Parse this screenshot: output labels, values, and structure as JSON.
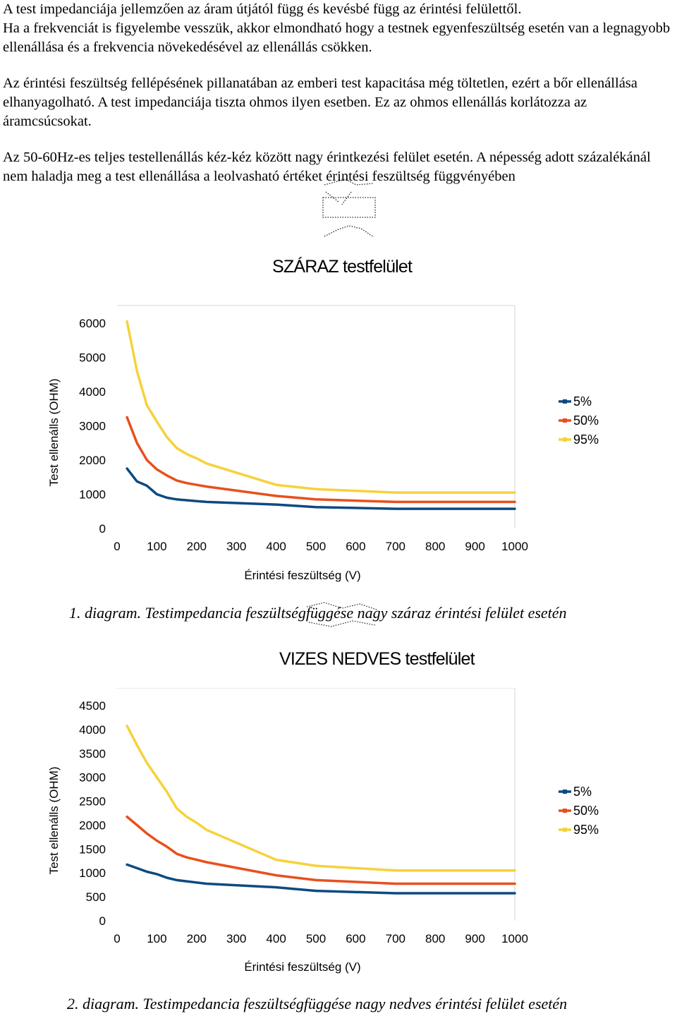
{
  "text": {
    "p1_line1": "A test impedanciája jellemzően az áram útjától függ és kevésbé függ az érintési felülettől.",
    "p1_line2": "Ha a frekvenciát is figyelembe vesszük, akkor elmondható hogy a testnek egyenfeszültség esetén van a legnagyobb ellenállása és a frekvencia növekedésével az ellenállás csökken.",
    "p2": "Az érintési feszültség fellépésének pillanatában az emberi test kapacitása még töltetlen, ezért a bőr ellenállása elhanyagolható. A test impedanciája tiszta ohmos ilyen esetben. Ez az ohmos ellenállás korlátozza az áramcsúcsokat.",
    "p3": "Az 50-60Hz-es teljes testellenállás kéz-kéz között nagy érintkezési felület esetén. A népesség adott százalékánál nem haladja meg a test ellenállása a leolvasható értéket érintési feszültség függvényében"
  },
  "colors": {
    "s5": "#0d4a80",
    "s50": "#e8501c",
    "s95": "#f6d23a",
    "grid": "#d4d4d4"
  },
  "chart_data": [
    {
      "type": "line",
      "title": "SZÁRAZ testfelület",
      "xlabel": "Érintési feszültség (V)",
      "ylabel": "Test ellenálls (OHM)",
      "caption": "1. diagram. Testimpedancia feszültségfüggése nagy száraz érintési felület esetén",
      "xlim": [
        0,
        1000
      ],
      "ylim": [
        0,
        6000
      ],
      "xticks": [
        "0",
        "100",
        "200",
        "300",
        "400",
        "500",
        "600",
        "700",
        "800",
        "900",
        "1000"
      ],
      "yticks": [
        "0",
        "1000",
        "2000",
        "3000",
        "4000",
        "5000",
        "6000"
      ],
      "legend_position": "right",
      "x": [
        25,
        50,
        75,
        100,
        125,
        150,
        175,
        200,
        225,
        400,
        500,
        700,
        1000
      ],
      "series": [
        {
          "name": "5%",
          "values": [
            1750,
            1375,
            1250,
            1000,
            900,
            850,
            825,
            800,
            775,
            700,
            625,
            575,
            575
          ]
        },
        {
          "name": "50%",
          "values": [
            3250,
            2500,
            2000,
            1725,
            1550,
            1400,
            1325,
            1275,
            1225,
            950,
            850,
            775,
            775
          ]
        },
        {
          "name": "95%",
          "values": [
            6050,
            4600,
            3600,
            3125,
            2675,
            2350,
            2175,
            2050,
            1900,
            1275,
            1150,
            1050,
            1050
          ]
        }
      ]
    },
    {
      "type": "line",
      "title": "VIZES NEDVES testfelület",
      "xlabel": "Érintési feszültség (V)",
      "ylabel": "Test ellenálls (OHM)",
      "caption": "2. diagram. Testimpedancia feszültségfüggése nagy nedves érintési felület esetén",
      "xlim": [
        0,
        1000
      ],
      "ylim": [
        0,
        4500
      ],
      "xticks": [
        "0",
        "100",
        "200",
        "300",
        "400",
        "500",
        "600",
        "700",
        "800",
        "900",
        "1000"
      ],
      "yticks": [
        "0",
        "500",
        "1000",
        "1500",
        "2000",
        "2500",
        "3000",
        "3500",
        "4000",
        "4500"
      ],
      "legend_position": "right",
      "x": [
        25,
        50,
        75,
        100,
        125,
        150,
        175,
        200,
        225,
        400,
        500,
        700,
        1000
      ],
      "series": [
        {
          "name": "5%",
          "values": [
            1175,
            1100,
            1025,
            975,
            900,
            850,
            825,
            800,
            775,
            700,
            625,
            575,
            575
          ]
        },
        {
          "name": "50%",
          "values": [
            2175,
            2000,
            1825,
            1675,
            1550,
            1400,
            1325,
            1275,
            1225,
            950,
            850,
            775,
            775
          ]
        },
        {
          "name": "95%",
          "values": [
            4075,
            3675,
            3300,
            3000,
            2700,
            2350,
            2175,
            2050,
            1900,
            1275,
            1150,
            1050,
            1050
          ]
        }
      ]
    }
  ]
}
